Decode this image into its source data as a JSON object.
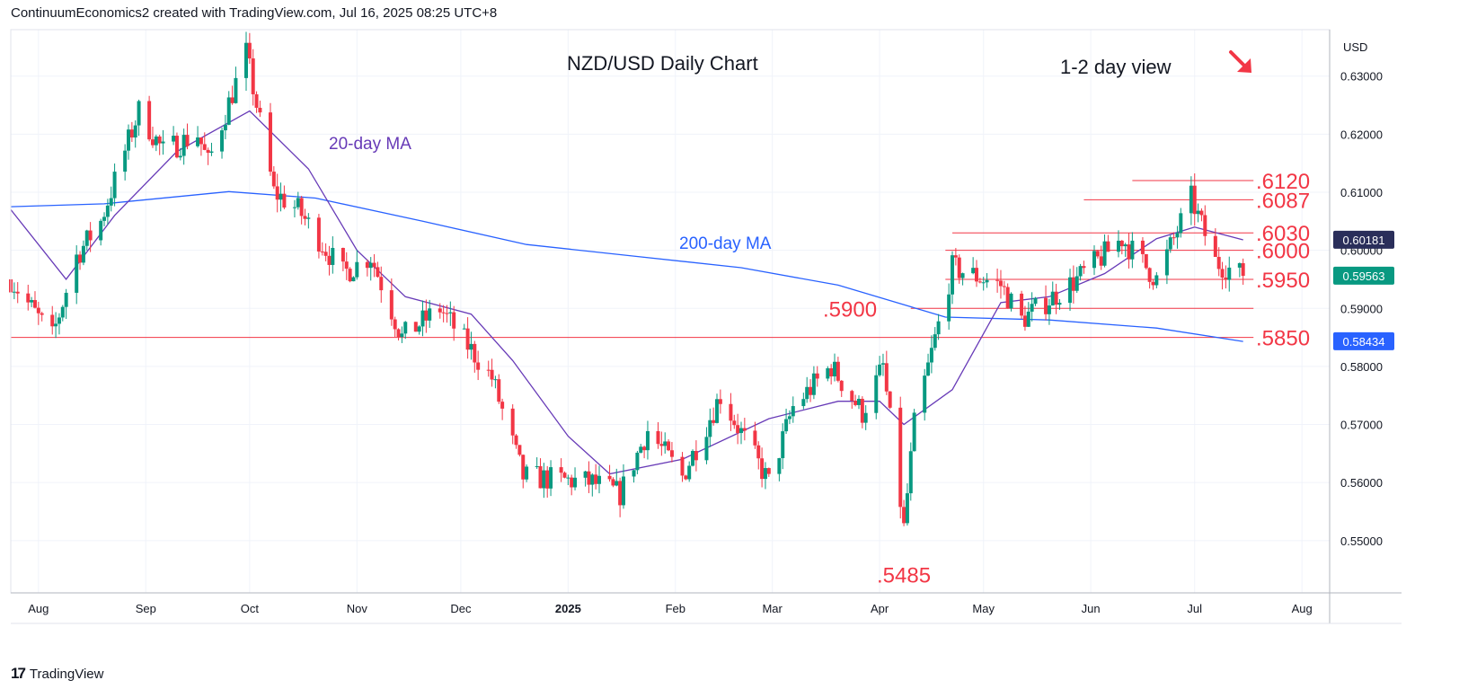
{
  "header": {
    "attribution": "ContinuumEconomics2 created with TradingView.com, Jul 16, 2025 08:25 UTC+8"
  },
  "footer": {
    "brand": "TradingView",
    "logo_icon": "tradingview-logo-icon"
  },
  "annotations": {
    "title": "NZD/USD Daily Chart",
    "view": "1-2 day view",
    "direction_icon": "arrow-down-right-icon",
    "ma20_label": "20-day MA",
    "ma200_label": "200-day MA"
  },
  "colors": {
    "up": "#089981",
    "down": "#f23645",
    "ma20": "#673ab7",
    "ma200": "#2962ff",
    "level_line": "#f23645",
    "grid": "#f0f3fa"
  },
  "chart_data": {
    "type": "candlestick",
    "title": "NZD/USD Daily Chart",
    "currency_label": "USD",
    "ylim": [
      0.541,
      0.638
    ],
    "y_ticks": [
      "0.63000",
      "0.62000",
      "0.61000",
      "0.60000",
      "0.59000",
      "0.58000",
      "0.57000",
      "0.56000",
      "0.55000"
    ],
    "y_tick_values": [
      0.63,
      0.62,
      0.61,
      0.6,
      0.59,
      0.58,
      0.57,
      0.56,
      0.55
    ],
    "x_ticks": [
      "Aug",
      "Sep",
      "Oct",
      "Nov",
      "Dec",
      "2025",
      "Feb",
      "Mar",
      "Apr",
      "May",
      "Jun",
      "Jul",
      "Aug"
    ],
    "x_tick_dates": [
      "2024-08-01",
      "2024-09-01",
      "2024-10-01",
      "2024-11-01",
      "2024-12-01",
      "2025-01-01",
      "2025-02-01",
      "2025-03-01",
      "2025-04-01",
      "2025-05-01",
      "2025-06-01",
      "2025-07-01",
      "2025-08-01"
    ],
    "x_range": [
      "2024-07-24",
      "2025-08-09"
    ],
    "price_badges": [
      {
        "label": "0.60181",
        "value": 0.60181,
        "color": "#2a2e5a"
      },
      {
        "label": "0.59563",
        "value": 0.59563,
        "color": "#089981"
      },
      {
        "label": "0.58434",
        "value": 0.58434,
        "color": "#2962ff"
      }
    ],
    "levels": [
      {
        "label": ".6120",
        "value": 0.612,
        "from": "2025-06-13",
        "to": "2025-07-18"
      },
      {
        "label": ".6087",
        "value": 0.6087,
        "from": "2025-05-30",
        "to": "2025-07-18"
      },
      {
        "label": ".6030",
        "value": 0.603,
        "from": "2025-04-22",
        "to": "2025-07-18"
      },
      {
        "label": ".6000",
        "value": 0.6,
        "from": "2025-04-20",
        "to": "2025-07-18"
      },
      {
        "label": ".5950",
        "value": 0.595,
        "from": "2025-04-20",
        "to": "2025-07-18"
      },
      {
        "label": ".5900",
        "value": 0.59,
        "from": "2025-04-10",
        "to": "2025-07-18"
      },
      {
        "label": ".5850",
        "value": 0.585,
        "from": "2024-07-24",
        "to": "2025-07-18"
      }
    ],
    "low_label": {
      "label": ".5485",
      "value": 0.5485,
      "date": "2025-04-09"
    },
    "ohlc_anchors": [
      [
        "2024-07-24",
        0.595
      ],
      [
        "2024-08-05",
        0.585
      ],
      [
        "2024-08-12",
        0.599
      ],
      [
        "2024-08-19",
        0.605
      ],
      [
        "2024-08-30",
        0.624
      ],
      [
        "2024-09-06",
        0.617
      ],
      [
        "2024-09-16",
        0.62
      ],
      [
        "2024-09-19",
        0.615
      ],
      [
        "2024-09-30",
        0.634
      ],
      [
        "2024-10-08",
        0.61
      ],
      [
        "2024-10-15",
        0.607
      ],
      [
        "2024-10-28",
        0.596
      ],
      [
        "2024-11-05",
        0.599
      ],
      [
        "2024-11-14",
        0.585
      ],
      [
        "2024-11-25",
        0.59
      ],
      [
        "2024-12-10",
        0.578
      ],
      [
        "2024-12-19",
        0.561
      ],
      [
        "2025-01-08",
        0.56
      ],
      [
        "2025-01-16",
        0.558
      ],
      [
        "2025-01-24",
        0.569
      ],
      [
        "2025-02-03",
        0.561
      ],
      [
        "2025-02-14",
        0.575
      ],
      [
        "2025-02-28",
        0.56
      ],
      [
        "2025-03-07",
        0.573
      ],
      [
        "2025-03-18",
        0.58
      ],
      [
        "2025-03-27",
        0.572
      ],
      [
        "2025-04-02",
        0.58
      ],
      [
        "2025-04-08",
        0.552
      ],
      [
        "2025-04-11",
        0.57
      ],
      [
        "2025-04-22",
        0.597
      ],
      [
        "2025-05-06",
        0.594
      ],
      [
        "2025-05-12",
        0.588
      ],
      [
        "2025-05-28",
        0.595
      ],
      [
        "2025-06-10",
        0.602
      ],
      [
        "2025-06-20",
        0.595
      ],
      [
        "2025-06-30",
        0.609
      ],
      [
        "2025-07-07",
        0.598
      ],
      [
        "2025-07-15",
        0.5956
      ]
    ],
    "ma20_points": [
      [
        "2024-07-24",
        0.607
      ],
      [
        "2024-08-09",
        0.595
      ],
      [
        "2024-08-23",
        0.606
      ],
      [
        "2024-09-10",
        0.617
      ],
      [
        "2024-10-01",
        0.624
      ],
      [
        "2024-10-18",
        0.614
      ],
      [
        "2024-11-01",
        0.6
      ],
      [
        "2024-11-15",
        0.592
      ],
      [
        "2024-12-04",
        0.589
      ],
      [
        "2024-12-16",
        0.581
      ],
      [
        "2025-01-01",
        0.568
      ],
      [
        "2025-01-13",
        0.5615
      ],
      [
        "2025-02-03",
        0.564
      ],
      [
        "2025-02-28",
        0.571
      ],
      [
        "2025-03-20",
        0.574
      ],
      [
        "2025-04-01",
        0.574
      ],
      [
        "2025-04-08",
        0.57
      ],
      [
        "2025-04-22",
        0.576
      ],
      [
        "2025-05-06",
        0.591
      ],
      [
        "2025-05-20",
        0.592
      ],
      [
        "2025-06-05",
        0.596
      ],
      [
        "2025-06-20",
        0.602
      ],
      [
        "2025-07-01",
        0.604
      ],
      [
        "2025-07-15",
        0.6018
      ]
    ],
    "ma200_points": [
      [
        "2024-07-24",
        0.6075
      ],
      [
        "2024-08-20",
        0.608
      ],
      [
        "2024-09-25",
        0.6101
      ],
      [
        "2024-10-20",
        0.609
      ],
      [
        "2024-11-20",
        0.605
      ],
      [
        "2024-12-20",
        0.601
      ],
      [
        "2025-01-20",
        0.599
      ],
      [
        "2025-02-20",
        0.597
      ],
      [
        "2025-03-20",
        0.594
      ],
      [
        "2025-04-20",
        0.5885
      ],
      [
        "2025-05-20",
        0.588
      ],
      [
        "2025-06-20",
        0.5866
      ],
      [
        "2025-07-15",
        0.5843
      ]
    ]
  }
}
